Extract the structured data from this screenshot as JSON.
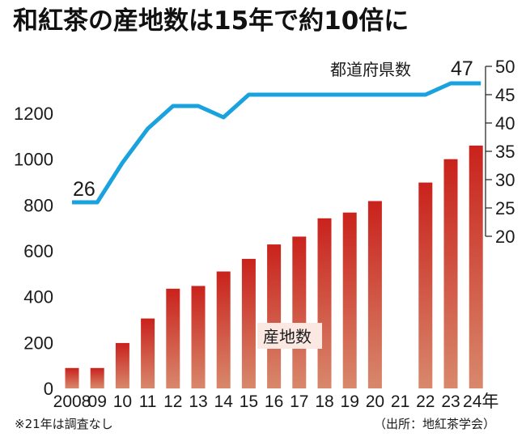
{
  "chart_data": {
    "type": "bar+line",
    "title": "和紅茶の産地数は15年で約10倍に",
    "categories": [
      "2008",
      "09",
      "10",
      "11",
      "12",
      "13",
      "14",
      "15",
      "16",
      "17",
      "18",
      "19",
      "20",
      "21",
      "22",
      "23",
      "24"
    ],
    "x_tick_labels": [
      "2008",
      "09",
      "10",
      "11",
      "12",
      "13",
      "14",
      "15",
      "16",
      "17",
      "18",
      "19",
      "20",
      "21",
      "22",
      "23",
      "24年"
    ],
    "series": [
      {
        "name": "産地数",
        "type": "bar",
        "axis": "left",
        "values": [
          89,
          89,
          198,
          305,
          435,
          447,
          510,
          565,
          628,
          662,
          742,
          767,
          817,
          null,
          898,
          1000,
          1059
        ]
      },
      {
        "name": "都道府県数",
        "type": "line",
        "axis": "right",
        "values": [
          26,
          26,
          33,
          39,
          43,
          43,
          41,
          45,
          45,
          45,
          45,
          45,
          45,
          45,
          45,
          47,
          47
        ]
      }
    ],
    "left_axis": {
      "ylim": [
        0,
        1200
      ],
      "ticks": [
        "0",
        "200",
        "400",
        "600",
        "800",
        "1000",
        "1200"
      ]
    },
    "right_axis": {
      "ylim": [
        20,
        50
      ],
      "ticks": [
        "20",
        "25",
        "30",
        "35",
        "40",
        "45",
        "50"
      ]
    },
    "annotations": {
      "line_start": "26",
      "line_end": "47"
    },
    "notes": {
      "left": "※21年は調査なし",
      "right": "（出所：地紅茶学会）"
    },
    "colors": {
      "bar_top": "#c9221c",
      "bar_bottom": "#d8886c",
      "line": "#1aa2df",
      "label_box": "#fbe8e2"
    },
    "grid": false
  }
}
